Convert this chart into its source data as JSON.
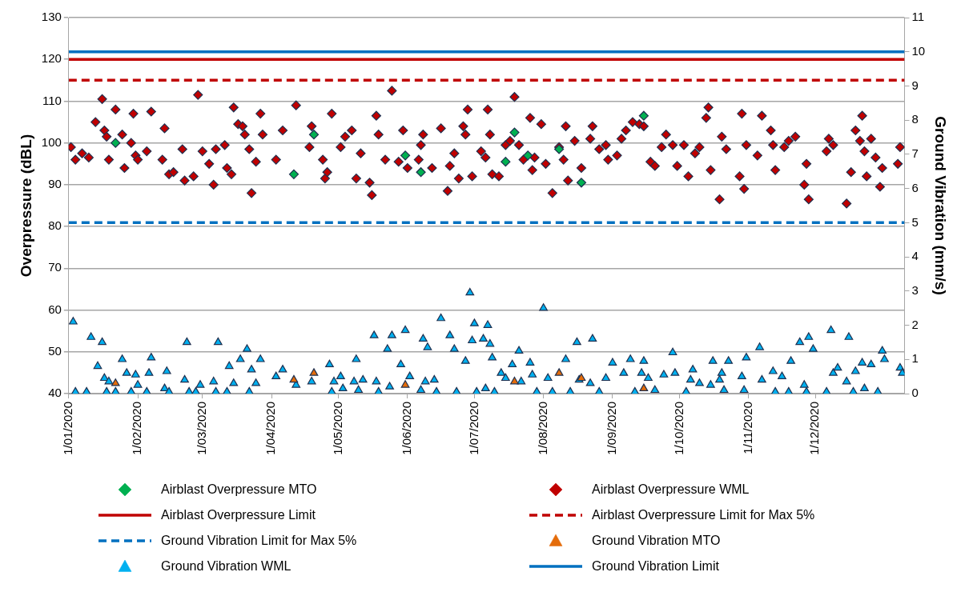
{
  "chart_data": {
    "type": "scatter",
    "ylabel": "Overpressure (dBL)",
    "y2label": "Ground Vibration (mm/s)",
    "xlim": [
      "2020-01-01",
      "2021-01-10"
    ],
    "xticks": [
      {
        "value": "2020-01-01",
        "label": "1/01/2020"
      },
      {
        "value": "2020-02-01",
        "label": "1/02/2020"
      },
      {
        "value": "2020-03-01",
        "label": "1/03/2020"
      },
      {
        "value": "2020-04-01",
        "label": "1/04/2020"
      },
      {
        "value": "2020-05-01",
        "label": "1/05/2020"
      },
      {
        "value": "2020-06-01",
        "label": "1/06/2020"
      },
      {
        "value": "2020-07-01",
        "label": "1/07/2020"
      },
      {
        "value": "2020-08-01",
        "label": "1/08/2020"
      },
      {
        "value": "2020-09-01",
        "label": "1/09/2020"
      },
      {
        "value": "2020-10-01",
        "label": "1/10/2020"
      },
      {
        "value": "2020-11-01",
        "label": "1/11/2020"
      },
      {
        "value": "2020-12-01",
        "label": "1/12/2020"
      }
    ],
    "ylim": [
      40,
      130
    ],
    "yticks": [
      40,
      50,
      60,
      70,
      80,
      90,
      100,
      110,
      120,
      130
    ],
    "y2lim": [
      0,
      11
    ],
    "y2ticks": [
      0,
      1,
      2,
      3,
      4,
      5,
      6,
      7,
      8,
      9,
      10,
      11
    ],
    "grid": "y",
    "legend": "bottom",
    "series": [
      {
        "name": "Airblast Overpressure MTO",
        "marker": "diamond",
        "color": "#00b050",
        "x": [
          "2020-01-22",
          "2020-04-11",
          "2020-04-20",
          "2020-05-31",
          "2020-06-07",
          "2020-07-15",
          "2020-07-19",
          "2020-07-25",
          "2020-08-08",
          "2020-08-18",
          "2020-09-15"
        ],
        "values": [
          100,
          92.5,
          102,
          97,
          93,
          95.5,
          102.5,
          97,
          98.5,
          90.5,
          106.5
        ]
      },
      {
        "name": "Airblast Overpressure WML",
        "marker": "diamond",
        "color": "#c00000",
        "x": [
          "2020-01-02",
          "2020-01-04",
          "2020-01-07",
          "2020-01-10",
          "2020-01-13",
          "2020-01-16",
          "2020-01-17",
          "2020-01-18",
          "2020-01-19",
          "2020-01-22",
          "2020-01-25",
          "2020-01-26",
          "2020-01-29",
          "2020-01-30",
          "2020-01-31",
          "2020-02-01",
          "2020-02-05",
          "2020-02-07",
          "2020-02-12",
          "2020-02-13",
          "2020-02-15",
          "2020-02-17",
          "2020-02-21",
          "2020-02-22",
          "2020-02-26",
          "2020-02-28",
          "2020-03-01",
          "2020-03-04",
          "2020-03-06",
          "2020-03-07",
          "2020-03-11",
          "2020-03-12",
          "2020-03-14",
          "2020-03-15",
          "2020-03-17",
          "2020-03-19",
          "2020-03-20",
          "2020-03-22",
          "2020-03-23",
          "2020-03-25",
          "2020-03-27",
          "2020-03-28",
          "2020-04-03",
          "2020-04-06",
          "2020-04-12",
          "2020-04-18",
          "2020-04-19",
          "2020-04-24",
          "2020-04-25",
          "2020-04-26",
          "2020-04-28",
          "2020-05-02",
          "2020-05-04",
          "2020-05-07",
          "2020-05-09",
          "2020-05-11",
          "2020-05-15",
          "2020-05-16",
          "2020-05-18",
          "2020-05-19",
          "2020-05-22",
          "2020-05-25",
          "2020-05-28",
          "2020-05-30",
          "2020-06-01",
          "2020-06-06",
          "2020-06-07",
          "2020-06-08",
          "2020-06-12",
          "2020-06-16",
          "2020-06-19",
          "2020-06-20",
          "2020-06-22",
          "2020-06-24",
          "2020-06-26",
          "2020-06-27",
          "2020-06-28",
          "2020-06-30",
          "2020-07-04",
          "2020-07-06",
          "2020-07-07",
          "2020-07-08",
          "2020-07-09",
          "2020-07-12",
          "2020-07-15",
          "2020-07-17",
          "2020-07-19",
          "2020-07-21",
          "2020-07-23",
          "2020-07-26",
          "2020-07-27",
          "2020-07-28",
          "2020-07-31",
          "2020-08-02",
          "2020-08-05",
          "2020-08-08",
          "2020-08-10",
          "2020-08-11",
          "2020-08-12",
          "2020-08-15",
          "2020-08-18",
          "2020-08-22",
          "2020-08-23",
          "2020-08-26",
          "2020-08-29",
          "2020-08-30",
          "2020-09-03",
          "2020-09-05",
          "2020-09-07",
          "2020-09-10",
          "2020-09-13",
          "2020-09-15",
          "2020-09-18",
          "2020-09-20",
          "2020-09-23",
          "2020-09-25",
          "2020-09-28",
          "2020-09-30",
          "2020-10-03",
          "2020-10-05",
          "2020-10-08",
          "2020-10-10",
          "2020-10-13",
          "2020-10-14",
          "2020-10-15",
          "2020-10-19",
          "2020-10-20",
          "2020-10-22",
          "2020-10-28",
          "2020-10-29",
          "2020-10-30",
          "2020-10-31",
          "2020-11-05",
          "2020-11-07",
          "2020-11-11",
          "2020-11-12",
          "2020-11-13",
          "2020-11-17",
          "2020-11-19",
          "2020-11-22",
          "2020-11-26",
          "2020-11-27",
          "2020-11-28",
          "2020-12-06",
          "2020-12-07",
          "2020-12-09",
          "2020-12-15",
          "2020-12-17",
          "2020-12-19",
          "2020-12-21",
          "2020-12-22",
          "2020-12-23",
          "2020-12-24",
          "2020-12-26",
          "2020-12-28",
          "2020-12-30",
          "2020-12-31",
          "2021-01-07",
          "2021-01-08"
        ],
        "values": [
          99,
          96,
          97.5,
          96.5,
          105,
          110.5,
          103,
          101.5,
          96,
          108,
          102,
          94,
          100,
          107,
          97,
          96,
          98,
          107.5,
          96,
          103.5,
          92.5,
          93,
          98.5,
          91,
          92,
          111.5,
          98,
          95,
          90,
          98.5,
          99.5,
          94,
          92.5,
          108.5,
          104.5,
          104,
          102,
          98.5,
          88,
          95.5,
          107,
          102,
          96,
          103,
          109,
          99,
          104,
          96,
          91.5,
          93,
          107,
          99,
          101.5,
          103,
          91.5,
          97.5,
          90.5,
          87.5,
          106.5,
          102,
          96,
          112.5,
          95.5,
          103,
          94,
          96,
          99.5,
          102,
          94,
          103.5,
          88.5,
          94.5,
          97.5,
          91.5,
          104,
          102,
          108,
          92,
          98,
          96.5,
          108,
          102,
          92.5,
          92,
          99.5,
          100.5,
          111,
          99.5,
          96,
          106,
          93.5,
          96.5,
          104.5,
          95,
          88,
          99,
          96,
          104,
          91,
          100.5,
          94,
          101,
          104,
          98.5,
          99.5,
          96,
          97,
          101,
          103,
          105,
          104.5,
          104,
          95.5,
          94.5,
          99,
          102,
          99.5,
          94.5,
          99.5,
          92,
          97.5,
          99,
          106,
          108.5,
          93.5,
          86.5,
          101.5,
          98.5,
          92,
          107,
          89,
          99.5,
          97,
          106.5,
          103,
          99.5,
          93.5,
          99,
          100.5,
          101.5,
          90,
          95,
          86.5,
          98,
          101,
          99.5,
          85.5,
          93,
          103,
          100.5,
          106.5,
          98,
          92,
          101,
          96.5,
          89.5,
          94,
          95,
          99
        ]
      },
      {
        "name": "Airblast Overpressure Limit",
        "type": "line",
        "marker": "none",
        "line_style": "solid",
        "color": "#c00000",
        "x": [
          "2020-01-01",
          "2021-01-10"
        ],
        "values": [
          120,
          120
        ]
      },
      {
        "name": "Airblast Overpressure Limit for Max 5%",
        "type": "line",
        "marker": "none",
        "line_style": "dashed",
        "color": "#c00000",
        "x": [
          "2020-01-01",
          "2021-01-10"
        ],
        "values": [
          115,
          115
        ]
      },
      {
        "name": "Ground Vibration Limit for Max 5%",
        "type": "line",
        "marker": "none",
        "line_style": "dashed",
        "color": "#0070c0",
        "axis": "y2",
        "x": [
          "2020-01-01",
          "2021-01-10"
        ],
        "values": [
          5,
          5
        ]
      },
      {
        "name": "Ground Vibration MTO",
        "marker": "triangle",
        "color": "#e46c0a",
        "axis": "y2",
        "x": [
          "2020-01-22",
          "2020-04-11",
          "2020-04-20",
          "2020-05-31",
          "2020-07-19",
          "2020-08-08",
          "2020-08-18",
          "2020-09-15"
        ],
        "values": [
          0.3,
          0.4,
          0.6,
          0.25,
          0.35,
          0.6,
          0.45,
          0.15
        ]
      },
      {
        "name": "Ground Vibration WML",
        "marker": "triangle",
        "color": "#00b0f0",
        "axis": "y2",
        "x": [
          "2020-01-03",
          "2020-01-04",
          "2020-01-09",
          "2020-01-11",
          "2020-01-14",
          "2020-01-16",
          "2020-01-17",
          "2020-01-18",
          "2020-01-19",
          "2020-01-22",
          "2020-01-25",
          "2020-01-27",
          "2020-01-29",
          "2020-01-31",
          "2020-02-01",
          "2020-02-05",
          "2020-02-06",
          "2020-02-07",
          "2020-02-13",
          "2020-02-14",
          "2020-02-15",
          "2020-02-22",
          "2020-02-23",
          "2020-02-24",
          "2020-02-27",
          "2020-02-29",
          "2020-03-06",
          "2020-03-07",
          "2020-03-08",
          "2020-03-12",
          "2020-03-13",
          "2020-03-15",
          "2020-03-18",
          "2020-03-21",
          "2020-03-22",
          "2020-03-23",
          "2020-03-25",
          "2020-03-27",
          "2020-04-03",
          "2020-04-06",
          "2020-04-12",
          "2020-04-19",
          "2020-04-27",
          "2020-04-28",
          "2020-04-29",
          "2020-05-02",
          "2020-05-03",
          "2020-05-08",
          "2020-05-09",
          "2020-05-10",
          "2020-05-12",
          "2020-05-17",
          "2020-05-18",
          "2020-05-19",
          "2020-05-23",
          "2020-05-24",
          "2020-05-25",
          "2020-05-29",
          "2020-05-31",
          "2020-06-02",
          "2020-06-07",
          "2020-06-08",
          "2020-06-09",
          "2020-06-10",
          "2020-06-13",
          "2020-06-14",
          "2020-06-16",
          "2020-06-20",
          "2020-06-22",
          "2020-06-23",
          "2020-06-27",
          "2020-06-29",
          "2020-06-30",
          "2020-07-01",
          "2020-07-02",
          "2020-07-05",
          "2020-07-06",
          "2020-07-07",
          "2020-07-08",
          "2020-07-09",
          "2020-07-10",
          "2020-07-13",
          "2020-07-15",
          "2020-07-18",
          "2020-07-21",
          "2020-07-22",
          "2020-07-26",
          "2020-07-27",
          "2020-07-29",
          "2020-08-01",
          "2020-08-03",
          "2020-08-05",
          "2020-08-11",
          "2020-08-13",
          "2020-08-16",
          "2020-08-17",
          "2020-08-22",
          "2020-08-23",
          "2020-08-26",
          "2020-08-29",
          "2020-09-01",
          "2020-09-06",
          "2020-09-09",
          "2020-09-11",
          "2020-09-14",
          "2020-09-15",
          "2020-09-17",
          "2020-09-20",
          "2020-09-24",
          "2020-09-28",
          "2020-09-29",
          "2020-10-04",
          "2020-10-06",
          "2020-10-07",
          "2020-10-10",
          "2020-10-15",
          "2020-10-16",
          "2020-10-19",
          "2020-10-20",
          "2020-10-21",
          "2020-10-23",
          "2020-10-29",
          "2020-10-30",
          "2020-10-31",
          "2020-11-06",
          "2020-11-07",
          "2020-11-12",
          "2020-11-13",
          "2020-11-16",
          "2020-11-19",
          "2020-11-20",
          "2020-11-24",
          "2020-11-26",
          "2020-11-27",
          "2020-11-28",
          "2020-11-30",
          "2020-12-06",
          "2020-12-08",
          "2020-12-09",
          "2020-12-11",
          "2020-12-15",
          "2020-12-16",
          "2020-12-18",
          "2020-12-19",
          "2020-12-22",
          "2020-12-23",
          "2020-12-26",
          "2020-12-29",
          "2020-12-31",
          "2021-01-01",
          "2021-01-08",
          "2021-01-09"
        ],
        "values": [
          2.1,
          0.05,
          0.05,
          1.65,
          0.8,
          1.5,
          0.45,
          0.05,
          0.35,
          0.05,
          1,
          0.6,
          0.05,
          0.55,
          0.25,
          0.05,
          0.6,
          1.05,
          0.15,
          0.65,
          0.05,
          0.4,
          1.5,
          0.05,
          0.05,
          0.25,
          0.35,
          0.05,
          1.5,
          0.05,
          0.8,
          0.3,
          1,
          1.3,
          0.05,
          0.7,
          0.3,
          1,
          0.5,
          0.7,
          0.25,
          0.35,
          0.85,
          0.05,
          0.35,
          0.5,
          0.15,
          0.35,
          1,
          0.1,
          0.4,
          1.7,
          0.35,
          0.05,
          1.3,
          0.2,
          1.7,
          0.85,
          1.85,
          0.5,
          0.1,
          1.6,
          0.35,
          1.35,
          0.4,
          0.05,
          2.2,
          1.7,
          1.3,
          0.05,
          0.95,
          2.95,
          1.55,
          2.05,
          0.05,
          1.6,
          0.15,
          2,
          1.45,
          1.05,
          0.05,
          0.6,
          0.45,
          0.85,
          1.25,
          0.35,
          0.9,
          0.55,
          0.05,
          2.5,
          0.45,
          0.05,
          1,
          0.05,
          1.5,
          0.4,
          0.3,
          1.6,
          0.05,
          0.45,
          0.9,
          0.6,
          1,
          0.05,
          0.6,
          0.95,
          0.45,
          0.1,
          0.55,
          1.2,
          0.6,
          0.05,
          0.4,
          0.7,
          0.3,
          0.25,
          0.95,
          0.4,
          0.6,
          0.1,
          0.95,
          0.5,
          0.1,
          1.05,
          1.35,
          0.4,
          0.65,
          0.05,
          0.5,
          0.05,
          0.95,
          1.5,
          0.25,
          0.05,
          1.65,
          1.3,
          0.05,
          1.85,
          0.6,
          0.75,
          0.35,
          1.65,
          0.05,
          0.65,
          0.9,
          0.15,
          0.85,
          0.05,
          1.25,
          1,
          0.75,
          0.6
        ]
      },
      {
        "name": "Ground Vibration Limit",
        "type": "line",
        "marker": "none",
        "line_style": "solid",
        "color": "#0070c0",
        "axis": "y2",
        "x": [
          "2020-01-01",
          "2021-01-10"
        ],
        "values": [
          10,
          10
        ]
      }
    ]
  }
}
